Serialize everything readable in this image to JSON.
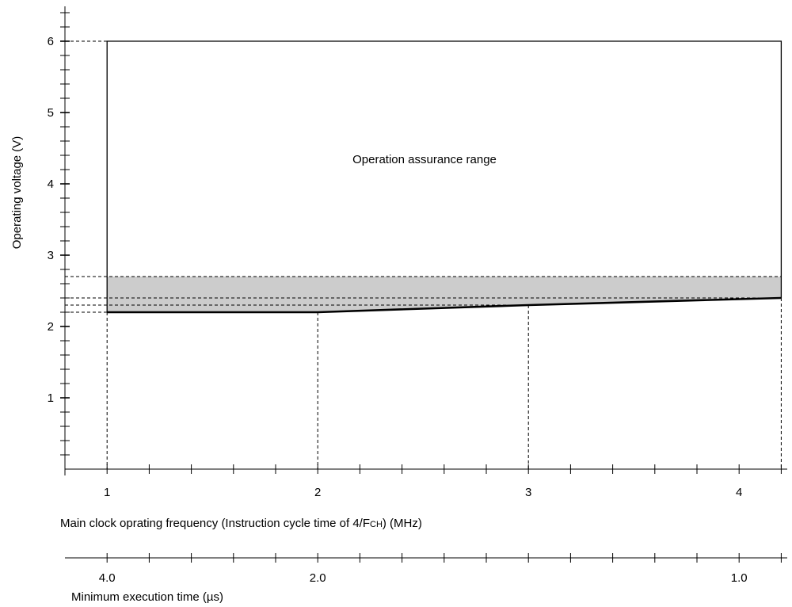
{
  "chart_data": {
    "type": "area",
    "xlabel": "Main clock oprating frequency (Instruction cycle time of 4/FCH) (MHz)",
    "xlabel_parts": [
      "Main clock oprating frequency (Instruction cycle time of 4/F",
      "CH",
      ") (MHz)"
    ],
    "ylabel": "Operating voltage (V)",
    "secondary_xlabel": "Minimum execution time (µs)",
    "xlim": [
      0.8,
      4.2
    ],
    "ylim": [
      0,
      6.5
    ],
    "x_ticks": [
      1,
      2,
      3,
      4
    ],
    "x_tick_labels": [
      "1",
      "2",
      "3",
      "4"
    ],
    "y_ticks": [
      1,
      2,
      3,
      4,
      5,
      6
    ],
    "y_tick_labels": [
      "1",
      "2",
      "3",
      "4",
      "5",
      "6"
    ],
    "secondary_x_tick_labels": [
      {
        "label": "4.0",
        "x": 1
      },
      {
        "label": "2.0",
        "x": 2
      },
      {
        "label": "1.0",
        "x": 4
      }
    ],
    "region": {
      "name": "Operation assurance range",
      "upper_voltage": 6.0,
      "lower_boundary": [
        {
          "x": 1.0,
          "y": 2.2
        },
        {
          "x": 2.0,
          "y": 2.2
        },
        {
          "x": 3.0,
          "y": 2.3
        },
        {
          "x": 4.2,
          "y": 2.4
        }
      ]
    },
    "shaded_band": {
      "upper_voltage": 2.7
    },
    "reference_voltages": [
      6.0,
      2.7,
      2.4,
      2.3,
      2.2
    ],
    "annotation": "Operation assurance range",
    "grid": false
  }
}
